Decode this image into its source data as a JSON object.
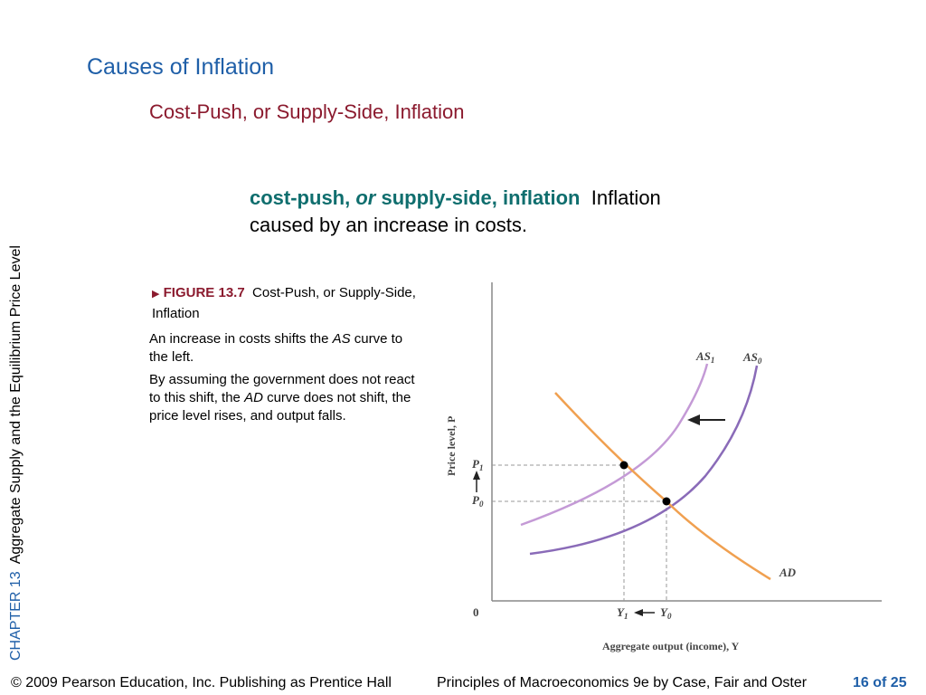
{
  "side_label": {
    "chapter": "CHAPTER 13",
    "title": "Aggregate Supply and the Equilibrium Price Level"
  },
  "title": "Causes of Inflation",
  "subtitle": "Cost-Push, or Supply-Side, Inflation",
  "definition": {
    "term_part1": "cost-push,",
    "term_or": "or",
    "term_part2": "supply-side, inflation",
    "text_line1": "Inflation",
    "text_line2": "caused by an increase in costs."
  },
  "figure": {
    "marker": "▶",
    "label": "FIGURE 13.7",
    "caption": "Cost-Push, or Supply-Side, Inflation",
    "desc1_a": "An increase in costs shifts the ",
    "desc1_b": "AS",
    "desc1_c": " curve to the left.",
    "desc2_a": "By assuming the government does not react to this shift, the ",
    "desc2_b": "AD",
    "desc2_c": " curve does not shift, the price level rises, and output falls."
  },
  "diagram": {
    "y_axis_label": "Price level, P",
    "x_axis_label": "Aggregate output (income), Y",
    "origin": "0",
    "as1_label": "AS",
    "as1_sub": "1",
    "as0_label": "AS",
    "as0_sub": "0",
    "ad_label": "AD",
    "p1_label": "P",
    "p1_sub": "1",
    "p0_label": "P",
    "p0_sub": "0",
    "y1_label": "Y",
    "y1_sub": "1",
    "y0_label": "Y",
    "y0_sub": "0",
    "colors": {
      "as_curves": "#8a6bb8",
      "as1_light": "#c49ad6",
      "ad_curve": "#f0a050",
      "guides": "#999999"
    }
  },
  "footer": {
    "copyright": "© 2009 Pearson Education, Inc. Publishing as Prentice Hall",
    "book": "Principles of Macroeconomics 9e by Case, Fair and Oster",
    "page": "16 of 25"
  }
}
